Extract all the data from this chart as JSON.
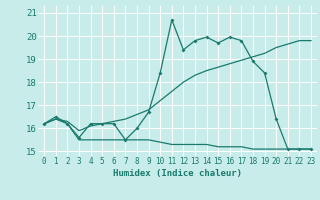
{
  "xlabel": "Humidex (Indice chaleur)",
  "bg_color": "#c8ece9",
  "grid_color": "#ffffff",
  "line_color": "#1a7a6e",
  "xlim": [
    -0.5,
    23.5
  ],
  "ylim": [
    14.8,
    21.3
  ],
  "yticks": [
    15,
    16,
    17,
    18,
    19,
    20,
    21
  ],
  "xticks": [
    0,
    1,
    2,
    3,
    4,
    5,
    6,
    7,
    8,
    9,
    10,
    11,
    12,
    13,
    14,
    15,
    16,
    17,
    18,
    19,
    20,
    21,
    22,
    23
  ],
  "series1_x": [
    0,
    1,
    2,
    3,
    4,
    5,
    6,
    7,
    8,
    9,
    10,
    11,
    12,
    13,
    14,
    15,
    16,
    17,
    18,
    19,
    20,
    21,
    22,
    23
  ],
  "series1_y": [
    16.2,
    16.5,
    16.2,
    15.6,
    16.2,
    16.2,
    16.2,
    15.5,
    16.0,
    16.7,
    18.4,
    20.7,
    19.4,
    19.8,
    19.95,
    19.7,
    19.95,
    19.8,
    18.9,
    18.4,
    16.4,
    15.1,
    15.1,
    15.1
  ],
  "series2_x": [
    0,
    1,
    2,
    3,
    4,
    5,
    6,
    7,
    8,
    9,
    10,
    11,
    12,
    13,
    14,
    15,
    16,
    17,
    18,
    19,
    20,
    21,
    22,
    23
  ],
  "series2_y": [
    16.2,
    16.4,
    16.2,
    15.5,
    15.5,
    15.5,
    15.5,
    15.5,
    15.5,
    15.5,
    15.4,
    15.3,
    15.3,
    15.3,
    15.3,
    15.2,
    15.2,
    15.2,
    15.1,
    15.1,
    15.1,
    15.1,
    15.1,
    15.1
  ],
  "series3_x": [
    0,
    1,
    2,
    3,
    4,
    5,
    6,
    7,
    8,
    9,
    10,
    11,
    12,
    13,
    14,
    15,
    16,
    17,
    18,
    19,
    20,
    21,
    22,
    23
  ],
  "series3_y": [
    16.2,
    16.4,
    16.3,
    15.9,
    16.1,
    16.2,
    16.3,
    16.4,
    16.6,
    16.8,
    17.2,
    17.6,
    18.0,
    18.3,
    18.5,
    18.65,
    18.8,
    18.95,
    19.1,
    19.25,
    19.5,
    19.65,
    19.8,
    19.8
  ]
}
